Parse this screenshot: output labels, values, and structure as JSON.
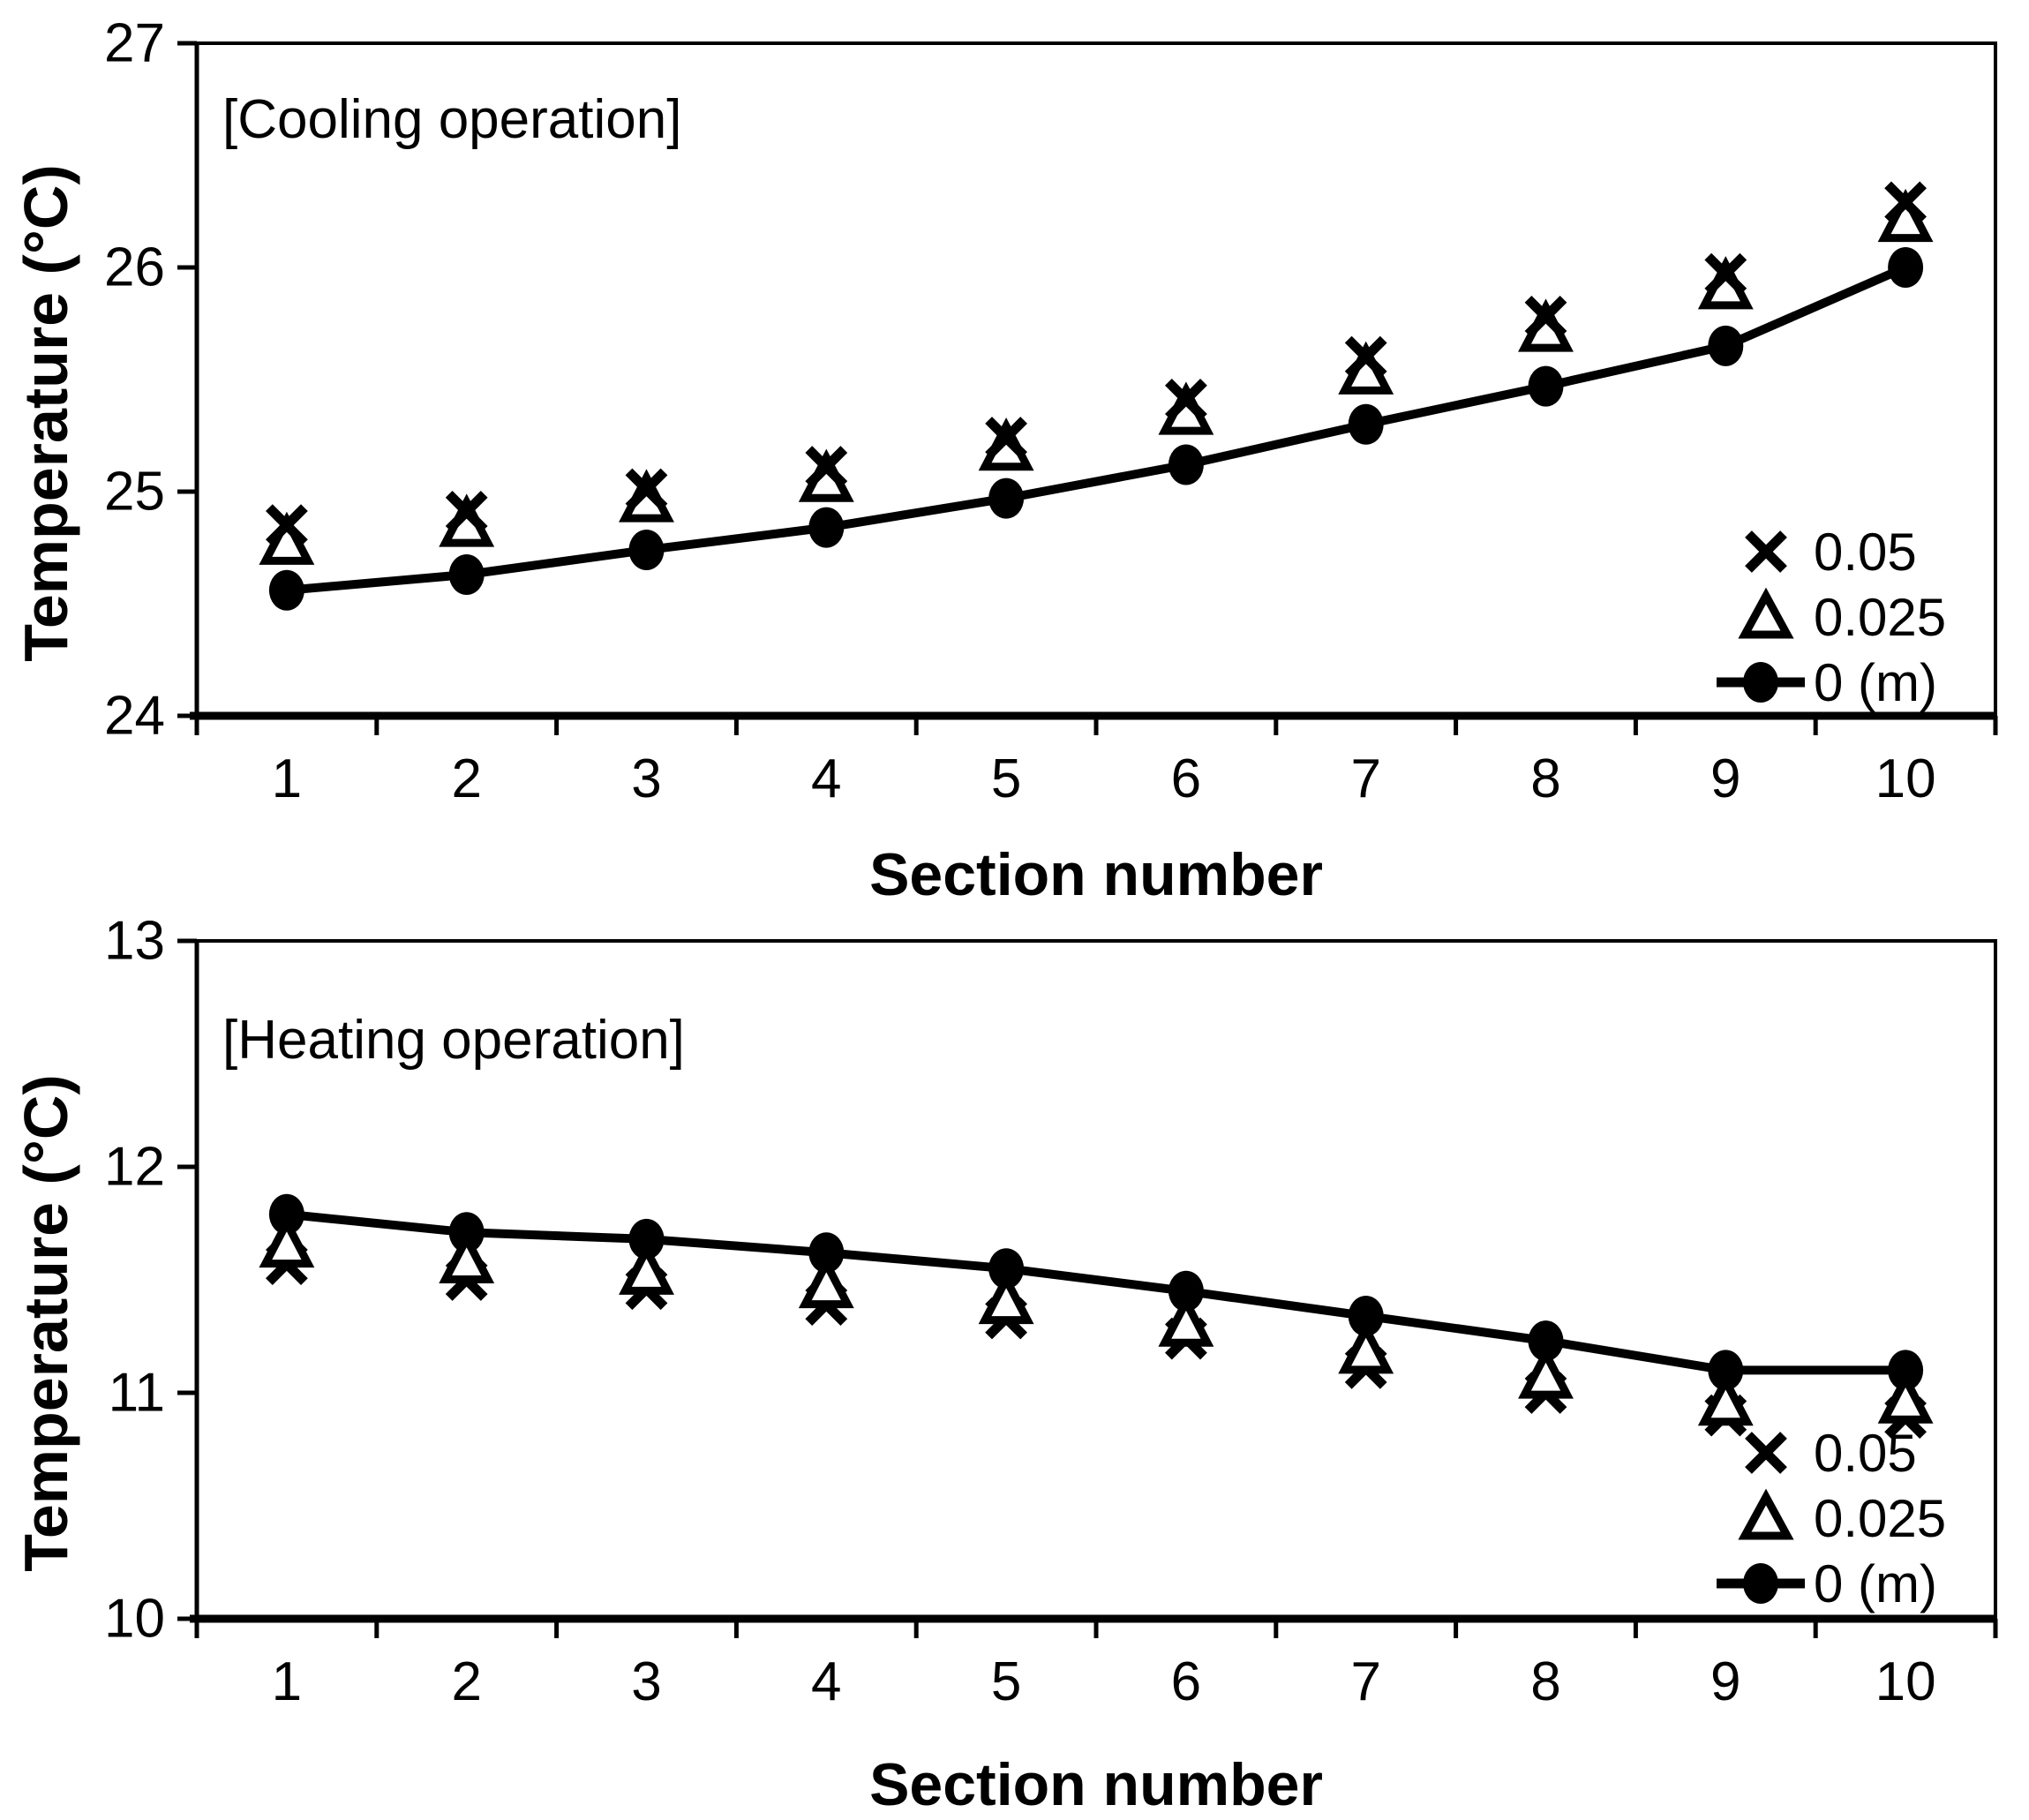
{
  "chart_data": [
    {
      "id": "cooling",
      "type": "line",
      "annotation": "[Cooling operation]",
      "ylabel": "Temperature (°C)",
      "xlabel": "Section number",
      "ylim": [
        24,
        27
      ],
      "y_ticks": [
        24,
        25,
        26,
        27
      ],
      "categories": [
        1,
        2,
        3,
        4,
        5,
        6,
        7,
        8,
        9,
        10
      ],
      "grid": false,
      "legend_position": "lower-right-inside",
      "series": [
        {
          "name": "0.05",
          "marker": "x",
          "values": [
            24.85,
            24.91,
            25.01,
            25.11,
            25.24,
            25.41,
            25.6,
            25.78,
            25.97,
            26.29
          ]
        },
        {
          "name": "0.025",
          "marker": "triangle",
          "values": [
            24.77,
            24.85,
            24.96,
            25.05,
            25.19,
            25.35,
            25.53,
            25.72,
            25.91,
            26.21
          ]
        },
        {
          "name": "0 (m)",
          "marker": "line-circle",
          "values": [
            24.56,
            24.63,
            24.74,
            24.84,
            24.97,
            25.12,
            25.3,
            25.47,
            25.65,
            26.0
          ]
        }
      ]
    },
    {
      "id": "heating",
      "type": "line",
      "annotation": "[Heating operation]",
      "ylabel": "Temperature (°C)",
      "xlabel": "Section number",
      "ylim": [
        10,
        13
      ],
      "y_ticks": [
        10,
        11,
        12,
        13
      ],
      "categories": [
        1,
        2,
        3,
        4,
        5,
        6,
        7,
        8,
        9,
        10
      ],
      "grid": false,
      "legend_position": "lower-right-inside",
      "series": [
        {
          "name": "0.05",
          "marker": "x",
          "values": [
            11.57,
            11.5,
            11.46,
            11.39,
            11.33,
            11.24,
            11.11,
            11.0,
            10.9,
            10.89
          ]
        },
        {
          "name": "0.025",
          "marker": "triangle",
          "values": [
            11.65,
            11.58,
            11.53,
            11.47,
            11.4,
            11.3,
            11.18,
            11.07,
            10.95,
            10.96
          ]
        },
        {
          "name": "0 (m)",
          "marker": "line-circle",
          "values": [
            11.79,
            11.71,
            11.68,
            11.62,
            11.55,
            11.45,
            11.34,
            11.23,
            11.1,
            11.1
          ]
        }
      ]
    }
  ],
  "colors": {
    "foreground": "#000000",
    "background": "#ffffff"
  }
}
